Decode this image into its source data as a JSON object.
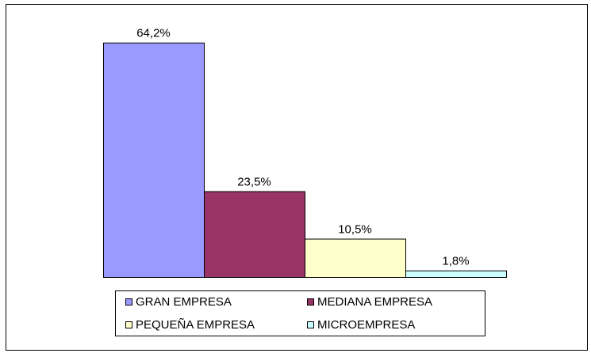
{
  "chart_data": {
    "type": "bar",
    "series": [
      {
        "name": "GRAN EMPRESA",
        "color": "#9999ff",
        "values": [
          64.2
        ],
        "value_labels": [
          "64,2%"
        ]
      },
      {
        "name": "MEDIANA EMPRESA",
        "color": "#993366",
        "values": [
          23.5
        ],
        "value_labels": [
          "23,5%"
        ]
      },
      {
        "name": "PEQUEÑA EMPRESA",
        "color": "#ffffcc",
        "values": [
          10.5
        ],
        "value_labels": [
          "10,5%"
        ]
      },
      {
        "name": "MICROEMPRESA",
        "color": "#ccffff",
        "values": [
          1.8
        ],
        "value_labels": [
          "1,8%"
        ]
      }
    ],
    "ylim": [
      0,
      70
    ],
    "legend": "bottom"
  }
}
